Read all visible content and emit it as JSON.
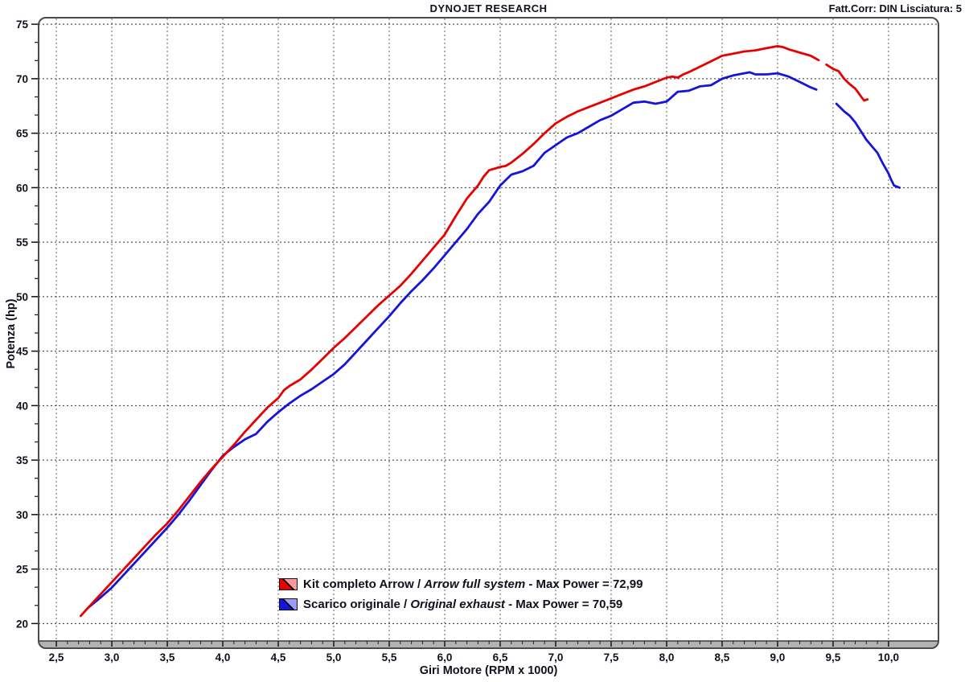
{
  "header": {
    "title": "DYNOJET RESEARCH",
    "right_label": "Fatt.Corr: DIN  Lisciatura: 5"
  },
  "axes": {
    "x_title": "Giri Motore (RPM x 1000)",
    "y_title": "Potenza (hp)"
  },
  "legend": {
    "rows": [
      {
        "prefix": "Kit completo Arrow / ",
        "italic": "Arrow full system",
        "suffix": " - Max Power = 72,99",
        "color": "#e60000",
        "color_light": "#ff9898"
      },
      {
        "prefix": "Scarico originale / ",
        "italic": "Original exhaust",
        "suffix": " - Max Power = 70,59",
        "color": "#1414dd",
        "color_light": "#9a9aff"
      }
    ]
  },
  "chart_data": {
    "type": "line",
    "title": "DYNOJET RESEARCH",
    "xlabel": "Giri Motore (RPM x 1000)",
    "ylabel": "Potenza (hp)",
    "xlim": [
      2.34,
      10.45
    ],
    "ylim": [
      18.4,
      75.6
    ],
    "x_major_ticks": [
      2.5,
      3.0,
      3.5,
      4.0,
      4.5,
      5.0,
      5.5,
      6.0,
      6.5,
      7.0,
      7.5,
      8.0,
      8.5,
      9.0,
      9.5,
      10.0
    ],
    "x_tick_labels": [
      "2,5",
      "3,0",
      "3,5",
      "4,0",
      "4,5",
      "5,0",
      "5,5",
      "6,0",
      "6,5",
      "7,0",
      "7,5",
      "8,0",
      "8,5",
      "9,0",
      "9,5",
      "10,0"
    ],
    "x_minor_step": 0.1,
    "y_major_ticks": [
      20,
      25,
      30,
      35,
      40,
      45,
      50,
      55,
      60,
      65,
      70,
      75
    ],
    "y_minor_divisions": 3,
    "grid": "dashed",
    "legend_position": "inside-bottom-center",
    "series": [
      {
        "name": "Kit completo Arrow / Arrow full system",
        "max_power": 72.99,
        "max_power_label": "72,99",
        "color": "#e60000",
        "segments": [
          [
            [
              2.72,
              20.7
            ],
            [
              2.8,
              21.6
            ],
            [
              2.9,
              22.7
            ],
            [
              3.0,
              23.8
            ],
            [
              3.1,
              24.9
            ],
            [
              3.2,
              26.0
            ],
            [
              3.3,
              27.1
            ],
            [
              3.4,
              28.2
            ],
            [
              3.5,
              29.2
            ],
            [
              3.6,
              30.4
            ],
            [
              3.7,
              31.7
            ],
            [
              3.8,
              33.0
            ],
            [
              3.9,
              34.2
            ],
            [
              4.0,
              35.3
            ],
            [
              4.1,
              36.4
            ],
            [
              4.2,
              37.6
            ],
            [
              4.3,
              38.7
            ],
            [
              4.4,
              39.8
            ],
            [
              4.5,
              40.7
            ],
            [
              4.55,
              41.4
            ],
            [
              4.6,
              41.8
            ],
            [
              4.7,
              42.4
            ],
            [
              4.8,
              43.3
            ],
            [
              4.9,
              44.3
            ],
            [
              5.0,
              45.3
            ],
            [
              5.1,
              46.2
            ],
            [
              5.2,
              47.2
            ],
            [
              5.3,
              48.2
            ],
            [
              5.4,
              49.2
            ],
            [
              5.5,
              50.1
            ],
            [
              5.6,
              51.0
            ],
            [
              5.7,
              52.1
            ],
            [
              5.8,
              53.3
            ],
            [
              5.9,
              54.5
            ],
            [
              6.0,
              55.7
            ],
            [
              6.1,
              57.4
            ],
            [
              6.2,
              59.0
            ],
            [
              6.3,
              60.2
            ],
            [
              6.35,
              61.0
            ],
            [
              6.4,
              61.6
            ],
            [
              6.5,
              61.9
            ],
            [
              6.55,
              62.0
            ],
            [
              6.6,
              62.3
            ],
            [
              6.7,
              63.1
            ],
            [
              6.8,
              64.0
            ],
            [
              6.9,
              65.0
            ],
            [
              7.0,
              65.9
            ],
            [
              7.1,
              66.5
            ],
            [
              7.2,
              67.0
            ],
            [
              7.3,
              67.4
            ],
            [
              7.4,
              67.8
            ],
            [
              7.5,
              68.2
            ],
            [
              7.6,
              68.6
            ],
            [
              7.7,
              69.0
            ],
            [
              7.8,
              69.3
            ],
            [
              7.9,
              69.7
            ],
            [
              8.0,
              70.1
            ],
            [
              8.05,
              70.2
            ],
            [
              8.1,
              70.1
            ],
            [
              8.15,
              70.4
            ],
            [
              8.2,
              70.6
            ],
            [
              8.3,
              71.1
            ],
            [
              8.4,
              71.6
            ],
            [
              8.5,
              72.1
            ],
            [
              8.6,
              72.3
            ],
            [
              8.7,
              72.5
            ],
            [
              8.8,
              72.6
            ],
            [
              8.9,
              72.8
            ],
            [
              9.0,
              72.99
            ],
            [
              9.05,
              72.9
            ],
            [
              9.1,
              72.7
            ],
            [
              9.2,
              72.4
            ],
            [
              9.3,
              72.1
            ],
            [
              9.37,
              71.7
            ]
          ],
          [
            [
              9.44,
              71.3
            ],
            [
              9.5,
              70.9
            ],
            [
              9.55,
              70.7
            ],
            [
              9.6,
              70.0
            ],
            [
              9.65,
              69.5
            ],
            [
              9.7,
              69.1
            ],
            [
              9.75,
              68.4
            ],
            [
              9.78,
              68.0
            ],
            [
              9.81,
              68.1
            ]
          ]
        ]
      },
      {
        "name": "Scarico originale / Original exhaust",
        "max_power": 70.59,
        "max_power_label": "70,59",
        "color": "#1414dd",
        "segments": [
          [
            [
              2.78,
              21.4
            ],
            [
              2.9,
              22.4
            ],
            [
              3.0,
              23.3
            ],
            [
              3.1,
              24.4
            ],
            [
              3.2,
              25.5
            ],
            [
              3.3,
              26.6
            ],
            [
              3.4,
              27.7
            ],
            [
              3.5,
              28.8
            ],
            [
              3.6,
              30.0
            ],
            [
              3.7,
              31.3
            ],
            [
              3.8,
              32.7
            ],
            [
              3.9,
              34.1
            ],
            [
              4.0,
              35.4
            ],
            [
              4.1,
              36.2
            ],
            [
              4.2,
              36.9
            ],
            [
              4.3,
              37.4
            ],
            [
              4.4,
              38.5
            ],
            [
              4.5,
              39.4
            ],
            [
              4.6,
              40.2
            ],
            [
              4.7,
              40.9
            ],
            [
              4.8,
              41.5
            ],
            [
              4.9,
              42.2
            ],
            [
              5.0,
              42.9
            ],
            [
              5.1,
              43.8
            ],
            [
              5.2,
              44.9
            ],
            [
              5.3,
              46.0
            ],
            [
              5.4,
              47.1
            ],
            [
              5.5,
              48.2
            ],
            [
              5.6,
              49.4
            ],
            [
              5.7,
              50.5
            ],
            [
              5.8,
              51.5
            ],
            [
              5.9,
              52.6
            ],
            [
              6.0,
              53.8
            ],
            [
              6.1,
              55.0
            ],
            [
              6.2,
              56.2
            ],
            [
              6.3,
              57.6
            ],
            [
              6.4,
              58.7
            ],
            [
              6.5,
              60.2
            ],
            [
              6.6,
              61.2
            ],
            [
              6.7,
              61.5
            ],
            [
              6.8,
              62.0
            ],
            [
              6.9,
              63.2
            ],
            [
              7.0,
              63.9
            ],
            [
              7.1,
              64.6
            ],
            [
              7.2,
              65.0
            ],
            [
              7.3,
              65.6
            ],
            [
              7.4,
              66.2
            ],
            [
              7.5,
              66.6
            ],
            [
              7.6,
              67.2
            ],
            [
              7.7,
              67.8
            ],
            [
              7.8,
              67.9
            ],
            [
              7.9,
              67.7
            ],
            [
              8.0,
              67.9
            ],
            [
              8.1,
              68.8
            ],
            [
              8.2,
              68.9
            ],
            [
              8.3,
              69.3
            ],
            [
              8.4,
              69.4
            ],
            [
              8.5,
              70.0
            ],
            [
              8.6,
              70.3
            ],
            [
              8.7,
              70.5
            ],
            [
              8.75,
              70.59
            ],
            [
              8.8,
              70.4
            ],
            [
              8.9,
              70.4
            ],
            [
              9.0,
              70.5
            ],
            [
              9.1,
              70.2
            ],
            [
              9.2,
              69.7
            ],
            [
              9.3,
              69.2
            ],
            [
              9.35,
              69.0
            ]
          ],
          [
            [
              9.53,
              67.7
            ],
            [
              9.6,
              67.0
            ],
            [
              9.65,
              66.6
            ],
            [
              9.7,
              66.0
            ],
            [
              9.75,
              65.2
            ],
            [
              9.8,
              64.4
            ],
            [
              9.85,
              63.8
            ],
            [
              9.9,
              63.2
            ],
            [
              9.95,
              62.2
            ],
            [
              10.0,
              61.3
            ],
            [
              10.02,
              60.8
            ],
            [
              10.05,
              60.2
            ],
            [
              10.1,
              60.0
            ]
          ]
        ]
      }
    ]
  }
}
